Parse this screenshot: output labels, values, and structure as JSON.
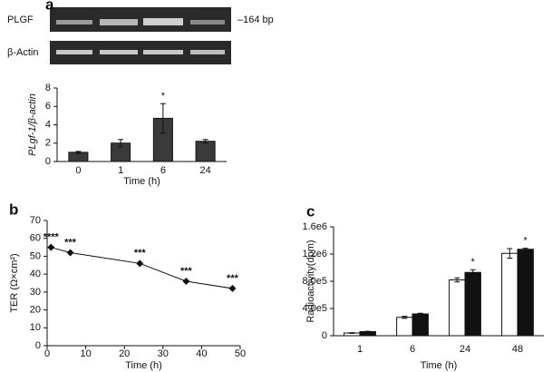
{
  "chart_data": [
    {
      "type": "bar",
      "panel_label": "a",
      "gel": {
        "labels": [
          "PLGF",
          "β-Actin"
        ],
        "marker": "–164 bp"
      },
      "categories": [
        "0",
        "1",
        "6",
        "24"
      ],
      "values": [
        1.0,
        2.0,
        4.7,
        2.2
      ],
      "errors": [
        0.1,
        0.4,
        1.6,
        0.2
      ],
      "annotations": [
        null,
        null,
        "*",
        null
      ],
      "color": "#3a3a3a",
      "ylim": [
        0,
        8
      ],
      "yticks": [
        0,
        2,
        4,
        6,
        8
      ],
      "ylabel": "PLgf-1/β-actin",
      "xlabel": "Time (h)"
    },
    {
      "type": "line",
      "panel_label": "b",
      "x": [
        1,
        6,
        24,
        36,
        48
      ],
      "values": [
        55,
        52,
        46,
        36,
        32
      ],
      "annotations": [
        "****",
        "***",
        "***",
        "***",
        "***"
      ],
      "color": "#111111",
      "xlim": [
        0,
        50
      ],
      "xticks": [
        0,
        10,
        20,
        30,
        40,
        50
      ],
      "ylim": [
        0,
        70
      ],
      "yticks": [
        0,
        10,
        20,
        30,
        40,
        50,
        60,
        70
      ],
      "ylabel": "TER (Ω×cm²)",
      "xlabel": "Time (h)"
    },
    {
      "type": "bar",
      "panel_label": "c",
      "categories": [
        "1",
        "6",
        "24",
        "48"
      ],
      "series": [
        {
          "color": "#ffffff",
          "values": [
            40000,
            270000,
            820000,
            1210000
          ],
          "errors": [
            5000,
            15000,
            30000,
            70000
          ],
          "annotations": [
            null,
            null,
            null,
            null
          ]
        },
        {
          "color": "#111111",
          "values": [
            60000,
            320000,
            930000,
            1270000
          ],
          "errors": [
            5000,
            10000,
            40000,
            15000
          ],
          "annotations": [
            null,
            null,
            "*",
            "*"
          ]
        }
      ],
      "ylim": [
        0,
        1600000
      ],
      "yticks": [
        0,
        {
          "value": 400000,
          "label": "4.0e5"
        },
        {
          "value": 800000,
          "label": "8.0e5"
        },
        {
          "value": 1200000,
          "label": "1.2e6"
        },
        {
          "value": 1600000,
          "label": "1.6e6"
        }
      ],
      "ylabel": "Radioactivity(dpm)",
      "xlabel": "Time (h)"
    }
  ]
}
